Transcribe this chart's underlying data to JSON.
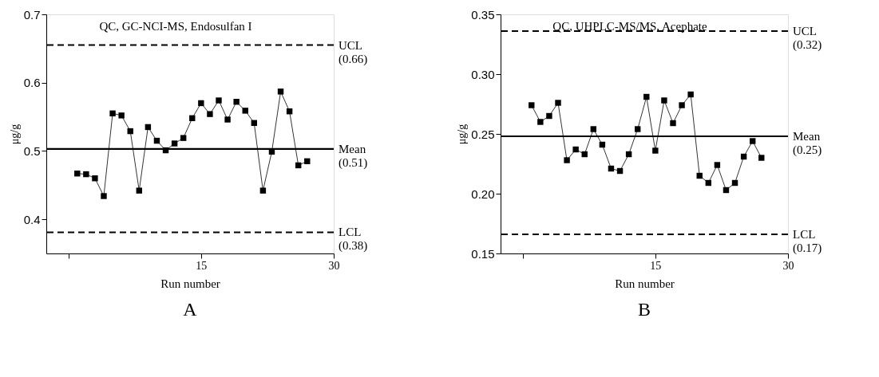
{
  "chart_data": [
    {
      "type": "line",
      "title": "QC, GC-NCI-MS, Endosulfan I",
      "xlabel": "Run number",
      "ylabel": "μg/g",
      "annotations": [
        "A"
      ],
      "x": [
        1,
        2,
        3,
        4,
        5,
        6,
        7,
        8,
        9,
        10,
        11,
        12,
        13,
        14,
        15,
        16,
        17,
        18,
        19,
        20,
        21,
        22,
        23,
        24,
        25,
        26,
        27
      ],
      "series": [
        {
          "color": "#000000",
          "values": [
            0.467,
            0.466,
            0.46,
            0.434,
            0.555,
            0.552,
            0.529,
            0.442,
            0.535,
            0.515,
            0.501,
            0.511,
            0.519,
            0.548,
            0.57,
            0.554,
            0.574,
            0.546,
            0.572,
            0.559,
            0.541,
            0.442,
            0.499,
            0.587,
            0.558,
            0.479,
            0.485
          ]
        }
      ],
      "marker": "square",
      "line_style": "solid",
      "grid": false,
      "xlim": [
        -2.5,
        30
      ],
      "xticks": [
        {
          "value": 0,
          "label": null
        },
        15,
        30
      ],
      "ylim": [
        0.35,
        0.7
      ],
      "yticks": [
        0.4,
        0.5,
        0.6,
        0.7
      ],
      "ref_lines": [
        {
          "axis": "y",
          "value": 0.655,
          "label": "UCL (0.66)",
          "color": "#000000",
          "line_style": "dashed"
        },
        {
          "axis": "y",
          "value": 0.503,
          "label": "Mean (0.51)",
          "color": "#000000",
          "line_style": "solid"
        },
        {
          "axis": "y",
          "value": 0.381,
          "label": "LCL (0.38)",
          "color": "#000000",
          "line_style": "dashed"
        }
      ]
    },
    {
      "type": "line",
      "title": "QC, UHPLC-MS/MS, Acephate",
      "xlabel": "Run number",
      "ylabel": "μg/g",
      "annotations": [
        "B"
      ],
      "x": [
        1,
        2,
        3,
        4,
        5,
        6,
        7,
        8,
        9,
        10,
        11,
        12,
        13,
        14,
        15,
        16,
        17,
        18,
        19,
        20,
        21,
        22,
        23,
        24,
        25,
        26,
        27
      ],
      "series": [
        {
          "color": "#000000",
          "values": [
            0.274,
            0.26,
            0.265,
            0.276,
            0.228,
            0.237,
            0.233,
            0.254,
            0.241,
            0.221,
            0.219,
            0.233,
            0.254,
            0.281,
            0.236,
            0.278,
            0.259,
            0.274,
            0.283,
            0.215,
            0.209,
            0.224,
            0.203,
            0.209,
            0.231,
            0.244,
            0.23
          ]
        }
      ],
      "marker": "square",
      "line_style": "solid",
      "grid": false,
      "xlim": [
        -2.5,
        30
      ],
      "xticks": [
        {
          "value": 0,
          "label": null
        },
        15,
        30
      ],
      "ylim": [
        0.15,
        0.35
      ],
      "yticks": [
        {
          "value": 0.15,
          "label": "0.15"
        },
        {
          "value": 0.2,
          "label": "0.20"
        },
        {
          "value": 0.25,
          "label": "0.25"
        },
        {
          "value": 0.3,
          "label": "0.30"
        },
        {
          "value": 0.35,
          "label": "0.35"
        }
      ],
      "ref_lines": [
        {
          "axis": "y",
          "value": 0.336,
          "label": "UCL (0.32)",
          "color": "#000000",
          "line_style": "dashed"
        },
        {
          "axis": "y",
          "value": 0.248,
          "label": "Mean (0.25)",
          "color": "#000000",
          "line_style": "solid"
        },
        {
          "axis": "y",
          "value": 0.166,
          "label": "LCL (0.17)",
          "color": "#000000",
          "line_style": "dashed"
        }
      ]
    }
  ]
}
